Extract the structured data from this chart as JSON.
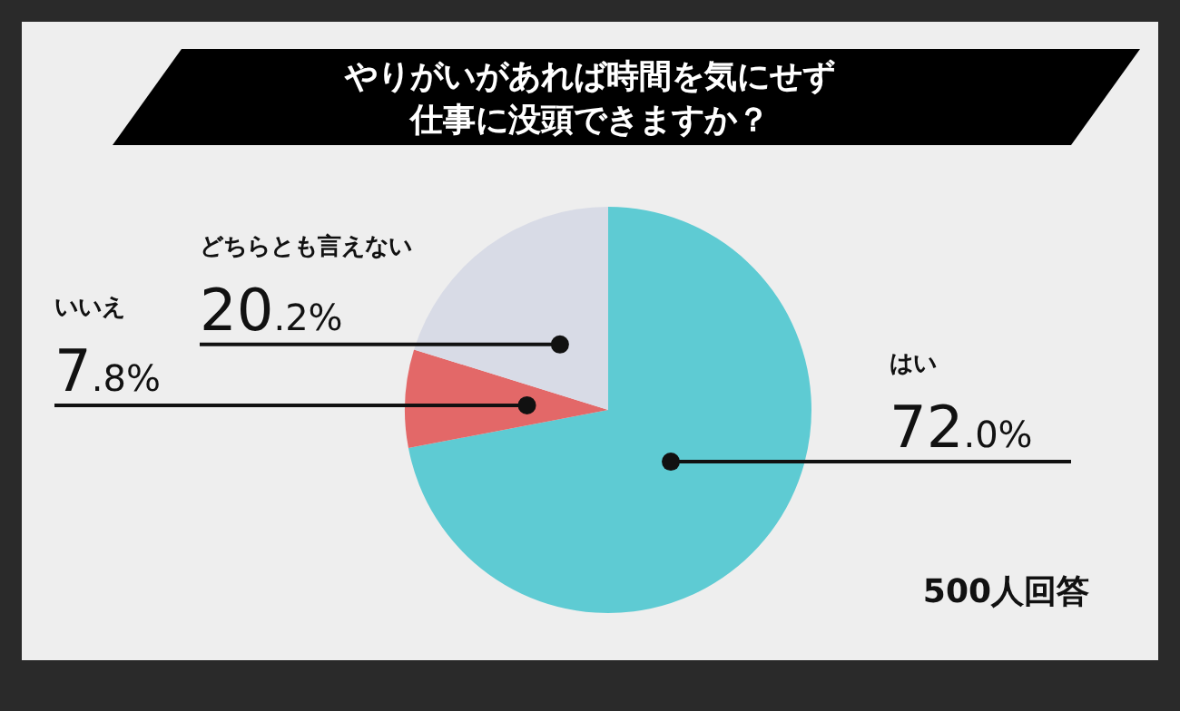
{
  "chart_data": {
    "type": "pie",
    "title": "やりがいがあれば時間を気にせず仕事に没頭できますか？",
    "categories": [
      "はい",
      "いいえ",
      "どちらとも言えない"
    ],
    "values": [
      72.0,
      7.8,
      20.2
    ],
    "colors": [
      "#5ecbd3",
      "#e36868",
      "#d8dbe6"
    ],
    "value_labels": [
      "72.0%",
      "7.8%",
      "20.2%"
    ],
    "annotations": [
      "500人回答"
    ]
  }
}
